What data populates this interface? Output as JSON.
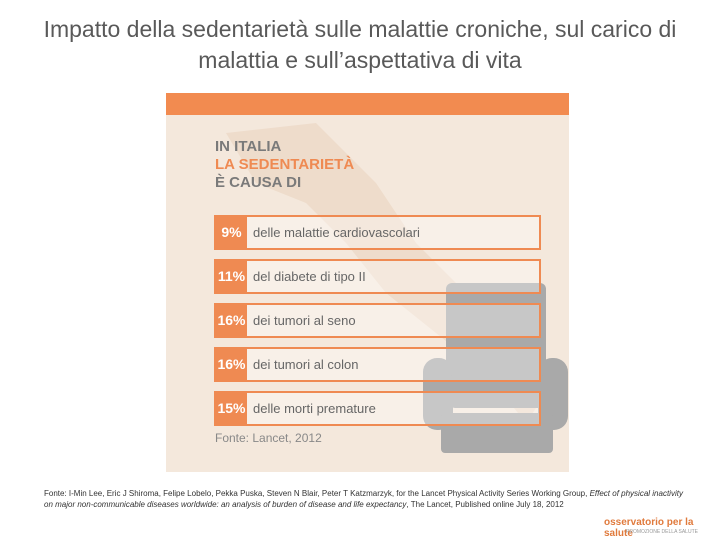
{
  "title": "Impatto della sedentarietà sulle malattie croniche, sul carico di malattia e sull’aspettativa di vita",
  "infographic": {
    "heading": [
      "IN ITALIA",
      "LA SEDENTARIETÀ",
      "È CAUSA DI"
    ],
    "rows": [
      {
        "pct": "9%",
        "label": "delle malattie cardiovascolari"
      },
      {
        "pct": "11%",
        "label": "del diabete di tipo II"
      },
      {
        "pct": "16%",
        "label": "dei tumori al seno"
      },
      {
        "pct": "16%",
        "label": "dei tumori al colon"
      },
      {
        "pct": "15%",
        "label": "delle morti premature"
      }
    ],
    "source": "Fonte: Lancet, 2012"
  },
  "footnote": [
    "Fonte: I-Min Lee, Eric J Shiroma, Felipe Lobelo, Pekka Puska, Steven N Blair, Peter T Katzmarzyk, for the Lancet Physical Activity Series Working Group, ",
    "Effect of physical inactivity on major non-communicable diseases worldwide: an analysis of burden of disease and life expectancy",
    ", The Lancet, Published online July 18, 2012"
  ],
  "logo": {
    "name": "osservatorio per la salute",
    "subtitle": "PROMOZIONE DELLA SALUTE"
  }
}
